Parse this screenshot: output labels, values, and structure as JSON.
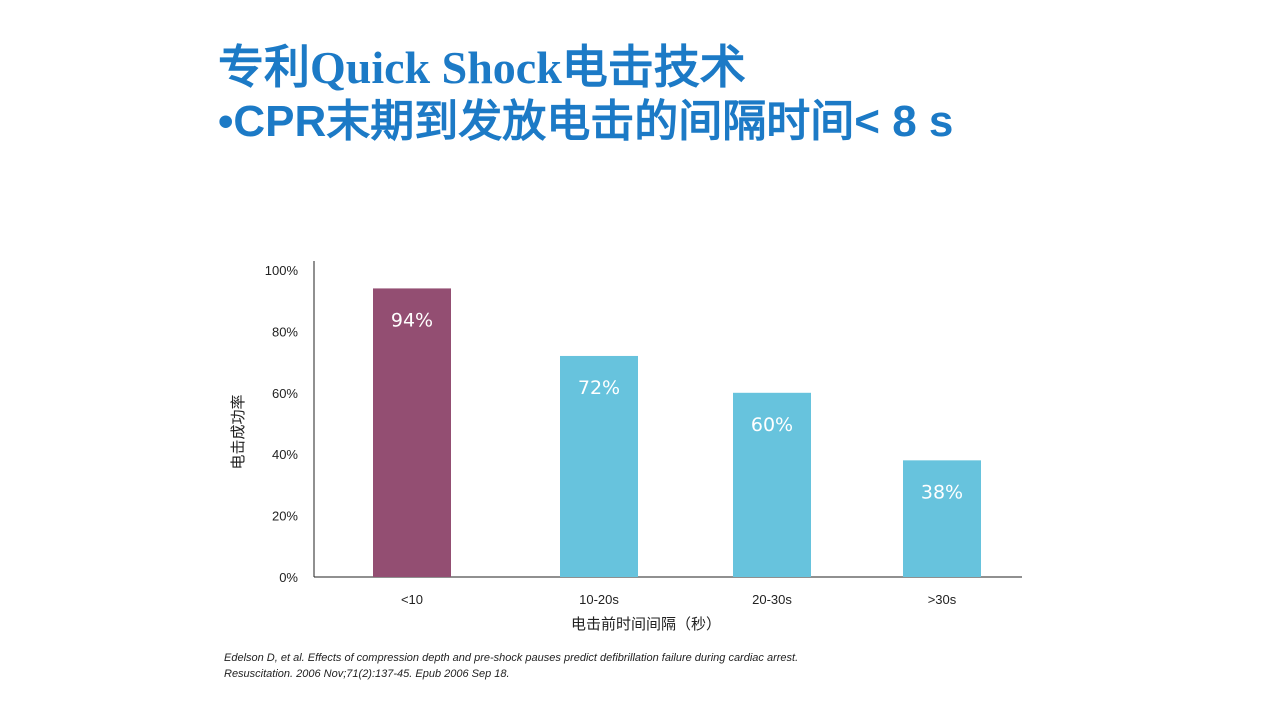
{
  "slide": {
    "title_line1": "专利Quick Shock电击技术",
    "title_line2": "•CPR末期到发放电击的间隔时间< 8 s",
    "citation_line1": "Edelson D, et al. Effects of compression depth and pre-shock pauses predict defibrillation failure during cardiac arrest.",
    "citation_line2": "Resuscitation. 2006 Nov;71(2):137-45. Epub 2006 Sep 18."
  },
  "colors": {
    "title": "#1c7ac6",
    "highlight_bar": "#934e72",
    "bar": "#67c3dd",
    "axis": "#222222"
  },
  "chart_data": {
    "type": "bar",
    "categories": [
      "<10",
      "10-20s",
      "20-30s",
      ">30s"
    ],
    "values": [
      94,
      72,
      60,
      38
    ],
    "data_labels": [
      "94%",
      "72%",
      "60%",
      "38%"
    ],
    "highlight_index": 0,
    "xlabel": "电击前时间间隔（秒）",
    "ylabel": "电击成功率",
    "ylim": [
      0,
      100
    ],
    "yticks": [
      0,
      20,
      40,
      60,
      80,
      100
    ],
    "ytick_labels": [
      "0%",
      "20%",
      "40%",
      "60%",
      "80%",
      "100%"
    ],
    "grid": false,
    "legend": "none"
  }
}
